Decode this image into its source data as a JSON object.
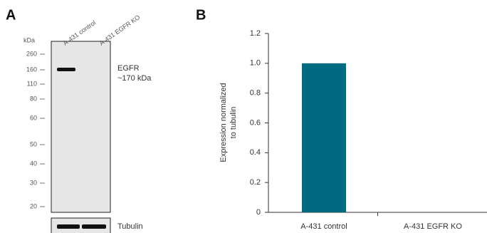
{
  "panel_a": {
    "label": "A",
    "units": "kDa",
    "lanes": [
      "A-431 control",
      "A-431 EGFR KO"
    ],
    "markers": [
      260,
      160,
      110,
      80,
      60,
      50,
      40,
      30,
      20
    ],
    "band_label": "EGFR",
    "band_size": "~170 kDa",
    "loading_label": "Tubulin"
  },
  "chart_data": {
    "type": "bar",
    "panel_label": "B",
    "y_label": [
      "Expression normalized",
      "to tubulin"
    ],
    "categories": [
      "A-431 control",
      "A-431 EGFR KO"
    ],
    "values": [
      1.0,
      0
    ],
    "color": "#006a80",
    "ylim": [
      0,
      1.2
    ],
    "yticks": [
      0,
      0.2,
      0.4,
      0.6,
      0.8,
      {
        "value": 1,
        "label": "1.0"
      },
      1.2
    ]
  }
}
